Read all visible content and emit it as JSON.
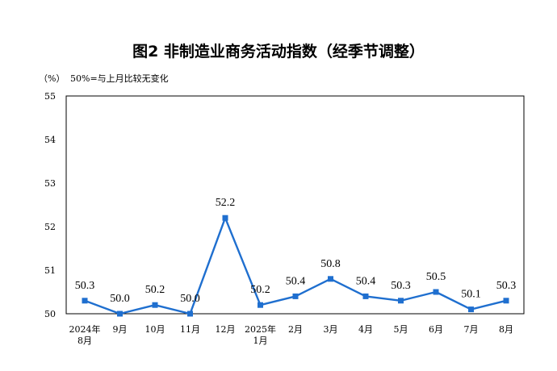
{
  "chart_data": {
    "type": "line",
    "title": "图2  非制造业商务活动指数（经季节调整）",
    "unit_label": "（%）",
    "note": "50%=与上月比较无变化",
    "categories": [
      [
        "2024年",
        "8月"
      ],
      [
        "9月"
      ],
      [
        "10月"
      ],
      [
        "11月"
      ],
      [
        "12月"
      ],
      [
        "2025年",
        "1月"
      ],
      [
        "2月"
      ],
      [
        "3月"
      ],
      [
        "4月"
      ],
      [
        "5月"
      ],
      [
        "6月"
      ],
      [
        "7月"
      ],
      [
        "8月"
      ]
    ],
    "series": [
      {
        "values": [
          50.3,
          50.0,
          50.2,
          50.0,
          52.2,
          50.2,
          50.4,
          50.8,
          50.4,
          50.3,
          50.5,
          50.1,
          50.3
        ],
        "labels": [
          "50.3",
          "50.0",
          "50.2",
          "50.0",
          "52.2",
          "50.2",
          "50.4",
          "50.8",
          "50.4",
          "50.3",
          "50.5",
          "50.1",
          "50.3"
        ],
        "color": "#1f6fcf"
      }
    ],
    "ylim": [
      50,
      55
    ],
    "yticks": [
      "50",
      "51",
      "52",
      "53",
      "54",
      "55"
    ],
    "grid": false,
    "legend": "none"
  }
}
